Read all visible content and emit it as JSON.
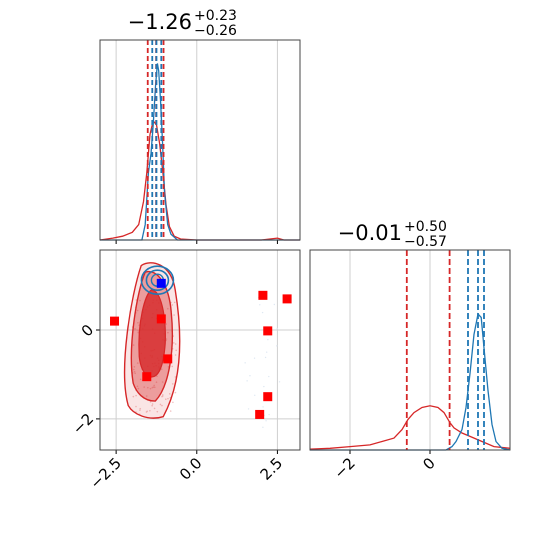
{
  "chart_data": [
    {
      "type": "histogram",
      "panel": "top-left",
      "title": {
        "main": "−1.26",
        "sup": "+0.23",
        "sub": "−0.26"
      },
      "xlim": [
        -3.0,
        3.2
      ],
      "grid": true,
      "colors": {
        "red": "#d62728",
        "blue": "#1f77b4"
      },
      "vlines_red": [
        -1.52,
        -1.26,
        -1.03
      ],
      "vlines_blue": [
        -1.38,
        -1.25,
        -1.1
      ],
      "series": [
        {
          "color_key": "red",
          "points": [
            [
              -3.0,
              0
            ],
            [
              -2.6,
              0.01
            ],
            [
              -2.3,
              0.02
            ],
            [
              -2.0,
              0.04
            ],
            [
              -1.8,
              0.08
            ],
            [
              -1.65,
              0.2
            ],
            [
              -1.55,
              0.35
            ],
            [
              -1.45,
              0.55
            ],
            [
              -1.35,
              0.62
            ],
            [
              -1.25,
              0.6
            ],
            [
              -1.15,
              0.5
            ],
            [
              -1.05,
              0.35
            ],
            [
              -0.95,
              0.18
            ],
            [
              -0.85,
              0.07
            ],
            [
              -0.7,
              0.02
            ],
            [
              -0.5,
              0.005
            ],
            [
              0.0,
              0
            ],
            [
              2.0,
              0
            ],
            [
              2.5,
              0.01
            ],
            [
              2.7,
              0
            ],
            [
              3.2,
              0
            ]
          ]
        },
        {
          "color_key": "blue",
          "points": [
            [
              -3.0,
              0
            ],
            [
              -1.7,
              0
            ],
            [
              -1.6,
              0.08
            ],
            [
              -1.5,
              0.35
            ],
            [
              -1.42,
              0.45
            ],
            [
              -1.35,
              0.6
            ],
            [
              -1.28,
              0.8
            ],
            [
              -1.22,
              0.92
            ],
            [
              -1.18,
              0.88
            ],
            [
              -1.12,
              0.72
            ],
            [
              -1.06,
              0.5
            ],
            [
              -1.0,
              0.25
            ],
            [
              -0.9,
              0.08
            ],
            [
              -0.8,
              0.03
            ],
            [
              -0.6,
              0
            ],
            [
              3.2,
              0
            ]
          ]
        }
      ]
    },
    {
      "type": "scatter",
      "panel": "bottom-left",
      "xlim": [
        -3.0,
        3.2
      ],
      "ylim": [
        -2.7,
        1.8
      ],
      "x_ticks": [
        "−2.5",
        "0.0",
        "2.5"
      ],
      "x_tick_values": [
        -2.5,
        0.0,
        2.5
      ],
      "y_ticks": [
        "−2",
        "0"
      ],
      "y_tick_values": [
        -2,
        0
      ],
      "grid": true,
      "red_squares": [
        [
          -2.55,
          0.2
        ],
        [
          -1.55,
          -1.05
        ],
        [
          -1.1,
          0.25
        ],
        [
          -0.9,
          -0.65
        ],
        [
          2.05,
          0.78
        ],
        [
          2.8,
          0.7
        ],
        [
          2.2,
          -0.02
        ],
        [
          2.2,
          -1.5
        ],
        [
          1.95,
          -1.9
        ]
      ],
      "blue_squares": [
        [
          -1.1,
          1.05
        ]
      ]
    },
    {
      "type": "histogram",
      "panel": "bottom-right",
      "title": {
        "main": "−0.01",
        "sup": "+0.50",
        "sub": "−0.57"
      },
      "xlim": [
        -3.0,
        2.0
      ],
      "x_ticks": [
        "−2",
        "0"
      ],
      "x_tick_values": [
        -2,
        0
      ],
      "grid": true,
      "colors": {
        "red": "#d62728",
        "blue": "#1f77b4"
      },
      "vlines_red": [
        -0.58,
        0.49
      ],
      "vlines_blue": [
        0.95,
        1.2,
        1.35
      ],
      "series": [
        {
          "color_key": "red",
          "points": [
            [
              -3.0,
              0.005
            ],
            [
              -2.5,
              0.01
            ],
            [
              -2.0,
              0.02
            ],
            [
              -1.5,
              0.03
            ],
            [
              -1.2,
              0.05
            ],
            [
              -0.9,
              0.07
            ],
            [
              -0.7,
              0.12
            ],
            [
              -0.55,
              0.18
            ],
            [
              -0.4,
              0.22
            ],
            [
              -0.2,
              0.25
            ],
            [
              0.0,
              0.26
            ],
            [
              0.2,
              0.25
            ],
            [
              0.35,
              0.22
            ],
            [
              0.5,
              0.16
            ],
            [
              0.6,
              0.13
            ],
            [
              0.8,
              0.1
            ],
            [
              1.0,
              0.08
            ],
            [
              1.3,
              0.05
            ],
            [
              1.6,
              0.02
            ],
            [
              2.0,
              0.01
            ]
          ]
        },
        {
          "color_key": "blue",
          "points": [
            [
              -3.0,
              0
            ],
            [
              0.4,
              0
            ],
            [
              0.55,
              0.02
            ],
            [
              0.65,
              0.05
            ],
            [
              0.8,
              0.12
            ],
            [
              0.9,
              0.25
            ],
            [
              1.0,
              0.45
            ],
            [
              1.1,
              0.68
            ],
            [
              1.2,
              0.8
            ],
            [
              1.28,
              0.78
            ],
            [
              1.35,
              0.6
            ],
            [
              1.45,
              0.35
            ],
            [
              1.55,
              0.15
            ],
            [
              1.65,
              0.05
            ],
            [
              1.8,
              0.01
            ],
            [
              2.0,
              0
            ]
          ]
        }
      ]
    }
  ]
}
